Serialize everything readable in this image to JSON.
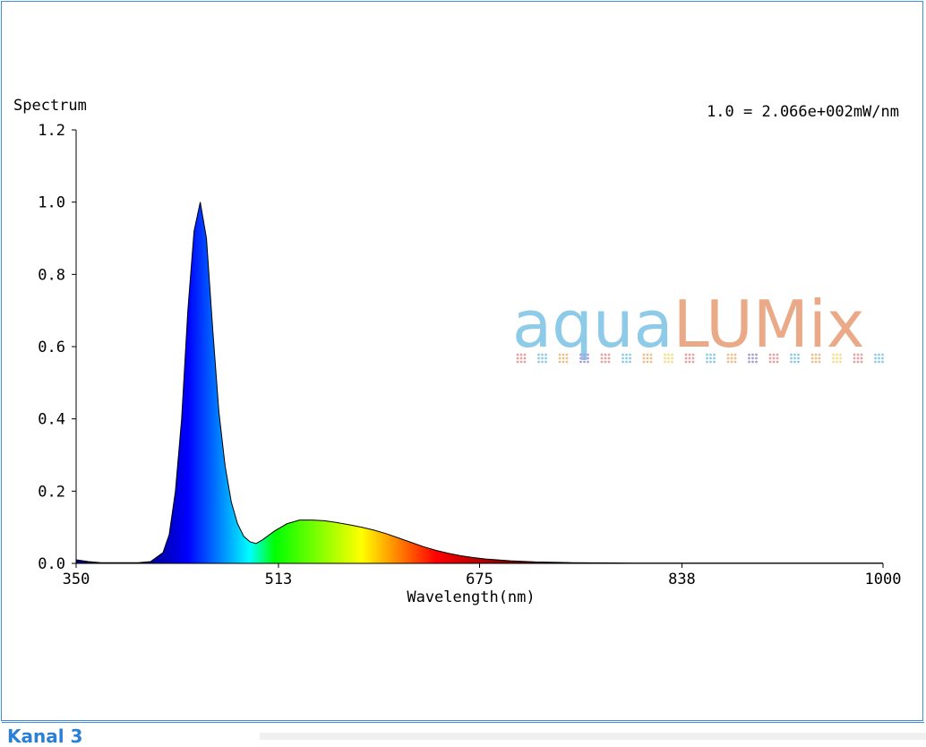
{
  "chart_data": {
    "type": "area",
    "y_label": "Spectrum",
    "x_label": "Wavelength(nm)",
    "annotation": "1.0 = 2.066e+002mW/nm",
    "watermark": {
      "part1": "aqua",
      "part2": "LUMix"
    },
    "x": [
      350,
      360,
      370,
      380,
      390,
      400,
      410,
      420,
      425,
      430,
      435,
      440,
      445,
      450,
      455,
      460,
      465,
      470,
      475,
      480,
      485,
      490,
      495,
      500,
      510,
      520,
      530,
      540,
      550,
      560,
      570,
      580,
      590,
      600,
      610,
      620,
      630,
      640,
      650,
      660,
      670,
      680,
      700,
      720,
      750,
      800,
      850,
      900,
      950,
      1000
    ],
    "values": [
      0.01,
      0.005,
      0.002,
      0.002,
      0.002,
      0.002,
      0.005,
      0.03,
      0.08,
      0.2,
      0.4,
      0.7,
      0.92,
      1.0,
      0.9,
      0.65,
      0.42,
      0.27,
      0.17,
      0.11,
      0.075,
      0.06,
      0.055,
      0.065,
      0.09,
      0.11,
      0.12,
      0.12,
      0.118,
      0.113,
      0.107,
      0.1,
      0.092,
      0.082,
      0.07,
      0.058,
      0.046,
      0.036,
      0.028,
      0.021,
      0.016,
      0.012,
      0.007,
      0.004,
      0.002,
      0.001,
      0.001,
      0.001,
      0.001,
      0.001
    ],
    "xlim": [
      350,
      1000
    ],
    "xticks": [
      350,
      513,
      675,
      838,
      1000
    ],
    "ylim": [
      0,
      1.2
    ],
    "yticks": [
      {
        "value": 0,
        "label": "0.0"
      },
      0.2,
      0.4,
      0.6,
      0.8,
      {
        "value": 1,
        "label": "1.0"
      },
      1.2
    ],
    "grid": false
  },
  "tab": {
    "label": "Kanal 3"
  }
}
